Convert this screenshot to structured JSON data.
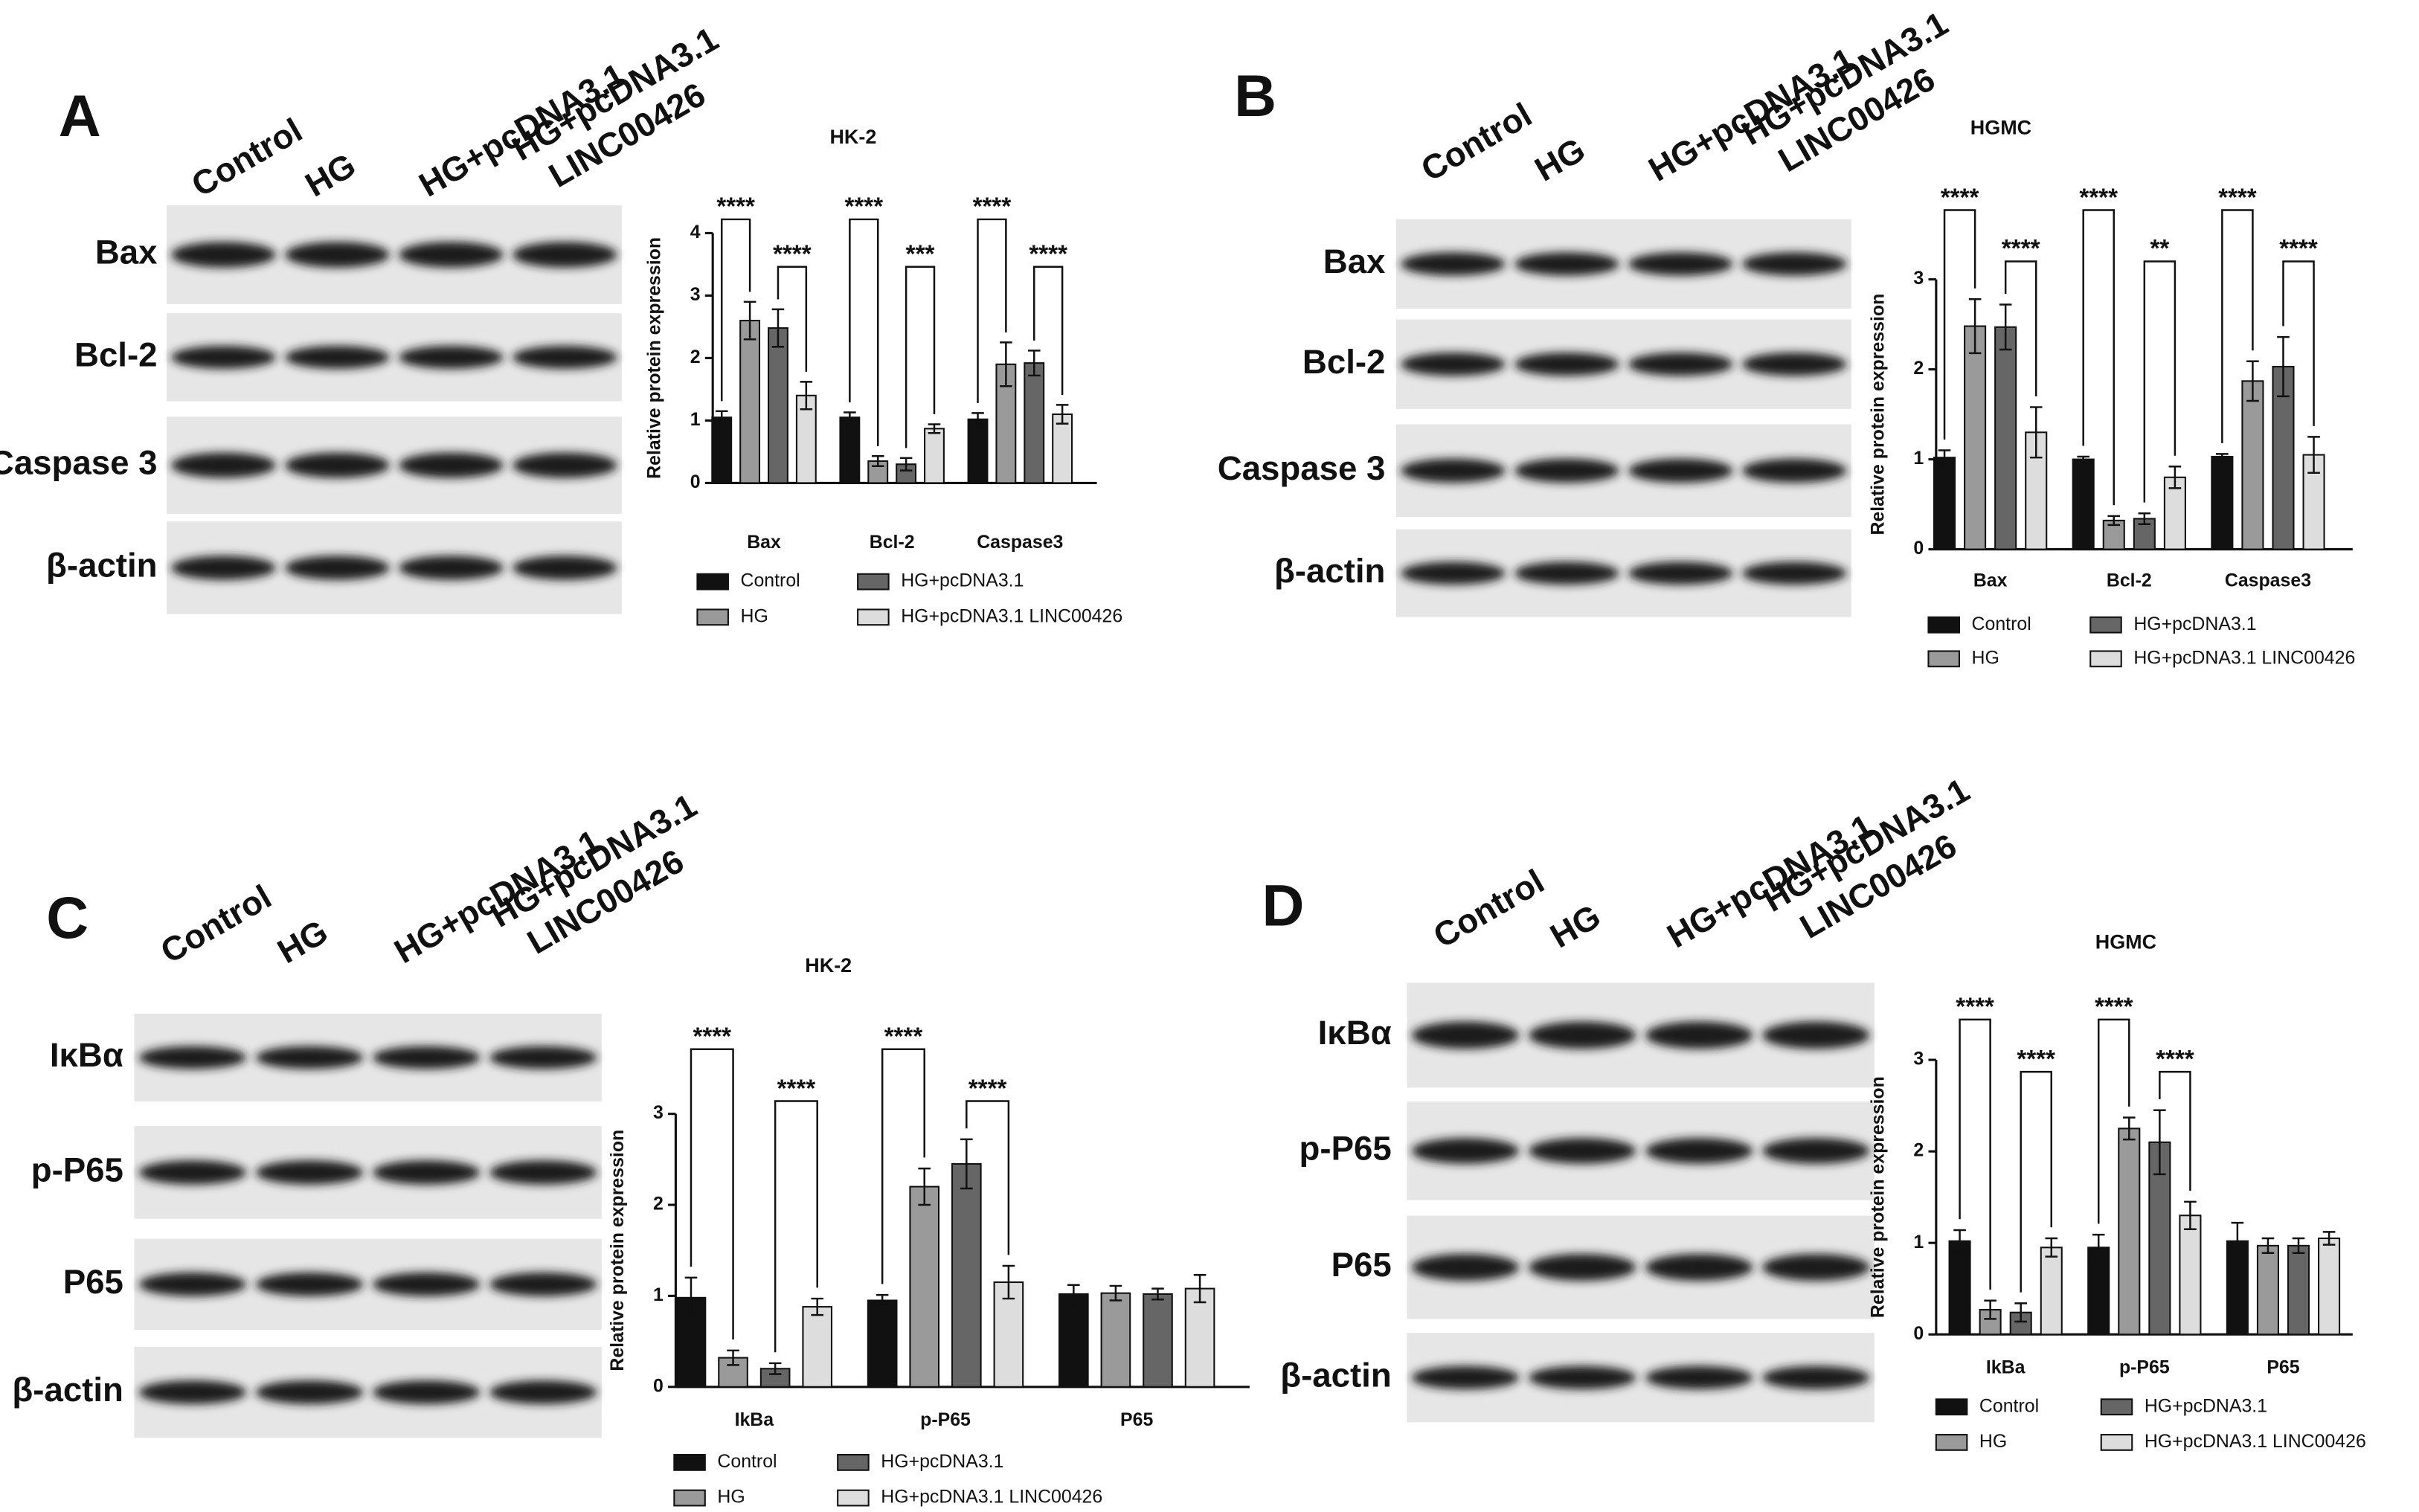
{
  "figure": {
    "panels": [
      {
        "label": "A",
        "lanes": [
          [
            "Control"
          ],
          [
            "HG"
          ],
          [
            "HG+pcDNA3.1"
          ],
          [
            "HG+pcDNA3.1",
            "LINC00426"
          ]
        ],
        "bands": [
          "Bax",
          "Bcl-2",
          "Caspase 3",
          "β-actin"
        ]
      },
      {
        "label": "B",
        "lanes": [
          [
            "Control"
          ],
          [
            "HG"
          ],
          [
            "HG+pcDNA3.1"
          ],
          [
            "HG+pcDNA3.1",
            "LINC00426"
          ]
        ],
        "bands": [
          "Bax",
          "Bcl-2",
          "Caspase 3",
          "β-actin"
        ]
      },
      {
        "label": "C",
        "lanes": [
          [
            "Control"
          ],
          [
            "HG"
          ],
          [
            "HG+pcDNA3.1"
          ],
          [
            "HG+pcDNA3.1",
            "LINC00426"
          ]
        ],
        "bands": [
          "IκBα",
          "p-P65",
          "P65",
          "β-actin"
        ]
      },
      {
        "label": "D",
        "lanes": [
          [
            "Control"
          ],
          [
            "HG"
          ],
          [
            "HG+pcDNA3.1"
          ],
          [
            "HG+pcDNA3.1",
            "LINC00426"
          ]
        ],
        "bands": [
          "IκBα",
          "p-P65",
          "P65",
          "β-actin"
        ]
      }
    ]
  },
  "chart_data": [
    {
      "type": "bar",
      "title": "HK-2",
      "ylabel": "Relative protein expression",
      "categories": [
        "Bax",
        "Bcl-2",
        "Caspase3"
      ],
      "series": [
        {
          "name": "Control",
          "color": "#111111",
          "values": [
            1.05,
            1.05,
            1.02
          ],
          "errors": [
            0.1,
            0.08,
            0.1
          ]
        },
        {
          "name": "HG",
          "color": "#9a9a9a",
          "values": [
            2.6,
            0.35,
            1.9
          ],
          "errors": [
            0.3,
            0.08,
            0.35
          ]
        },
        {
          "name": "HG+pcDNA3.1",
          "color": "#666666",
          "values": [
            2.48,
            0.3,
            1.92
          ],
          "errors": [
            0.3,
            0.1,
            0.2
          ]
        },
        {
          "name": "HG+pcDNA3.1 LINC00426",
          "color": "#dddddd",
          "values": [
            1.4,
            0.87,
            1.1
          ],
          "errors": [
            0.22,
            0.07,
            0.15
          ]
        }
      ],
      "ylim": [
        0,
        4
      ],
      "yticks": [
        0,
        1,
        2,
        3,
        4
      ],
      "annotations": [
        {
          "category": 0,
          "pair": [
            0,
            1
          ],
          "text": "****"
        },
        {
          "category": 0,
          "pair": [
            2,
            3
          ],
          "text": "****"
        },
        {
          "category": 1,
          "pair": [
            0,
            1
          ],
          "text": "****"
        },
        {
          "category": 1,
          "pair": [
            2,
            3
          ],
          "text": "***"
        },
        {
          "category": 2,
          "pair": [
            0,
            1
          ],
          "text": "****"
        },
        {
          "category": 2,
          "pair": [
            2,
            3
          ],
          "text": "****"
        }
      ]
    },
    {
      "type": "bar",
      "title": "HGMC",
      "ylabel": "Relative protein expression",
      "categories": [
        "Bax",
        "Bcl-2",
        "Caspase3"
      ],
      "series": [
        {
          "name": "Control",
          "color": "#111111",
          "values": [
            1.02,
            1.0,
            1.03
          ],
          "errors": [
            0.08,
            0.03,
            0.03
          ]
        },
        {
          "name": "HG",
          "color": "#9a9a9a",
          "values": [
            2.48,
            0.32,
            1.87
          ],
          "errors": [
            0.3,
            0.05,
            0.22
          ]
        },
        {
          "name": "HG+pcDNA3.1",
          "color": "#666666",
          "values": [
            2.47,
            0.34,
            2.03
          ],
          "errors": [
            0.25,
            0.06,
            0.33
          ]
        },
        {
          "name": "HG+pcDNA3.1 LINC00426",
          "color": "#dddddd",
          "values": [
            1.3,
            0.8,
            1.05
          ],
          "errors": [
            0.28,
            0.12,
            0.2
          ]
        }
      ],
      "ylim": [
        0,
        3
      ],
      "yticks": [
        0,
        1,
        2,
        3
      ],
      "annotations": [
        {
          "category": 0,
          "pair": [
            0,
            1
          ],
          "text": "****"
        },
        {
          "category": 0,
          "pair": [
            2,
            3
          ],
          "text": "****"
        },
        {
          "category": 1,
          "pair": [
            0,
            1
          ],
          "text": "****"
        },
        {
          "category": 1,
          "pair": [
            2,
            3
          ],
          "text": "**"
        },
        {
          "category": 2,
          "pair": [
            0,
            1
          ],
          "text": "****"
        },
        {
          "category": 2,
          "pair": [
            2,
            3
          ],
          "text": "****"
        }
      ]
    },
    {
      "type": "bar",
      "title": "HK-2",
      "ylabel": "Relative protein expression",
      "categories": [
        "IkBa",
        "p-P65",
        "P65"
      ],
      "series": [
        {
          "name": "Control",
          "color": "#111111",
          "values": [
            0.98,
            0.95,
            1.02
          ],
          "errors": [
            0.22,
            0.06,
            0.1
          ]
        },
        {
          "name": "HG",
          "color": "#9a9a9a",
          "values": [
            0.32,
            2.2,
            1.03
          ],
          "errors": [
            0.08,
            0.2,
            0.08
          ]
        },
        {
          "name": "HG+pcDNA3.1",
          "color": "#666666",
          "values": [
            0.2,
            2.45,
            1.02
          ],
          "errors": [
            0.06,
            0.27,
            0.06
          ]
        },
        {
          "name": "HG+pcDNA3.1 LINC00426",
          "color": "#dddddd",
          "values": [
            0.88,
            1.15,
            1.08
          ],
          "errors": [
            0.09,
            0.18,
            0.15
          ]
        }
      ],
      "ylim": [
        0,
        3
      ],
      "yticks": [
        0,
        1,
        2,
        3
      ],
      "annotations": [
        {
          "category": 0,
          "pair": [
            0,
            1
          ],
          "text": "****"
        },
        {
          "category": 0,
          "pair": [
            2,
            3
          ],
          "text": "****"
        },
        {
          "category": 1,
          "pair": [
            0,
            1
          ],
          "text": "****"
        },
        {
          "category": 1,
          "pair": [
            2,
            3
          ],
          "text": "****"
        }
      ]
    },
    {
      "type": "bar",
      "title": "HGMC",
      "ylabel": "Relative protein expression",
      "categories": [
        "IkBa",
        "p-P65",
        "P65"
      ],
      "series": [
        {
          "name": "Control",
          "color": "#111111",
          "values": [
            1.02,
            0.95,
            1.02
          ],
          "errors": [
            0.12,
            0.14,
            0.2
          ]
        },
        {
          "name": "HG",
          "color": "#9a9a9a",
          "values": [
            0.27,
            2.25,
            0.97
          ],
          "errors": [
            0.1,
            0.12,
            0.08
          ]
        },
        {
          "name": "HG+pcDNA3.1",
          "color": "#666666",
          "values": [
            0.24,
            2.1,
            0.97
          ],
          "errors": [
            0.1,
            0.35,
            0.08
          ]
        },
        {
          "name": "HG+pcDNA3.1 LINC00426",
          "color": "#dddddd",
          "values": [
            0.95,
            1.3,
            1.05
          ],
          "errors": [
            0.1,
            0.15,
            0.07
          ]
        }
      ],
      "ylim": [
        0,
        3
      ],
      "yticks": [
        0,
        1,
        2,
        3
      ],
      "annotations": [
        {
          "category": 0,
          "pair": [
            0,
            1
          ],
          "text": "****"
        },
        {
          "category": 0,
          "pair": [
            2,
            3
          ],
          "text": "****"
        },
        {
          "category": 1,
          "pair": [
            0,
            1
          ],
          "text": "****"
        },
        {
          "category": 1,
          "pair": [
            2,
            3
          ],
          "text": "****"
        }
      ]
    }
  ]
}
